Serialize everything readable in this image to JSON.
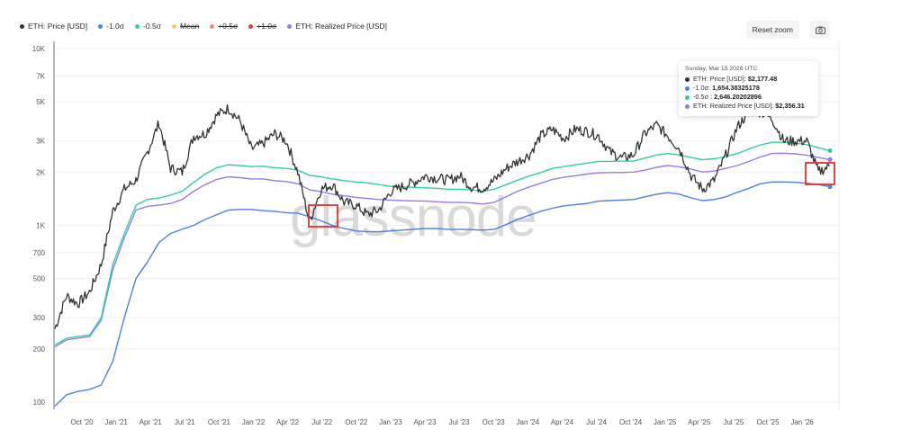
{
  "legend": [
    {
      "label": "ETH: Price [USD]",
      "color": "#333333",
      "hidden": false
    },
    {
      "label": "-1.0σ",
      "color": "#4f7fe0",
      "hidden": false
    },
    {
      "label": "-0.5σ",
      "color": "#2fcfa6",
      "hidden": false
    },
    {
      "label": "Mean",
      "color": "#f2cd4f",
      "hidden": true
    },
    {
      "label": "+0.5σ",
      "color": "#f28a6b",
      "hidden": true
    },
    {
      "label": "+1.0σ",
      "color": "#e8344f",
      "hidden": true
    },
    {
      "label": "ETH: Realized Price [USD]",
      "color": "#9b78ee",
      "hidden": false
    }
  ],
  "toolbar": {
    "reset_zoom_label": "Reset zoom",
    "camera_icon": "camera-icon"
  },
  "tooltip": {
    "date": "Sunday, Mar 15 2026 UTC",
    "rows": [
      {
        "label": "ETH: Price [USD]: ",
        "value": "$2,177.48",
        "color": "#333333"
      },
      {
        "label": "-1.0σ: ",
        "value": "1,654.38325178",
        "color": "#4f7fe0"
      },
      {
        "label": "-0.5σ : ",
        "value": "2,646.20202896",
        "color": "#2fcfa6"
      },
      {
        "label": "ETH: Realized Price [USD]: ",
        "value": "$2,356.31",
        "color": "#9b78ee"
      }
    ]
  },
  "watermark": "glassnode",
  "chart_data": {
    "type": "line",
    "title": "",
    "xlabel": "",
    "ylabel": "",
    "yscale": "log",
    "ylim": [
      90,
      10000
    ],
    "y_ticks": [
      "100",
      "200",
      "300",
      "500",
      "700",
      "1K",
      "2K",
      "3K",
      "5K",
      "7K",
      "10K"
    ],
    "y_tick_values": [
      100,
      200,
      300,
      500,
      700,
      1000,
      2000,
      3000,
      5000,
      7000,
      10000
    ],
    "x_ticks": [
      "Oct '20",
      "Jan '21",
      "Apr '21",
      "Jul '21",
      "Oct '21",
      "Jan '22",
      "Apr '22",
      "Jul '22",
      "Oct '22",
      "Jan '23",
      "Apr '23",
      "Jul '23",
      "Oct '23",
      "Jan '24",
      "Apr '24",
      "Jul '24",
      "Oct '24",
      "Jan '25",
      "Apr '25",
      "Jul '25",
      "Oct '25",
      "Jan '26"
    ],
    "grid": true,
    "legend_position": "top-left",
    "x": [
      "Aug '20",
      "Sep '20",
      "Oct '20",
      "Nov '20",
      "Dec '20",
      "Jan '21",
      "Feb '21",
      "Mar '21",
      "Apr '21",
      "May '21",
      "Jun '21",
      "Jul '21",
      "Aug '21",
      "Sep '21",
      "Oct '21",
      "Nov '21",
      "Dec '21",
      "Jan '22",
      "Feb '22",
      "Mar '22",
      "Apr '22",
      "May '22",
      "Jun '22",
      "Jul '22",
      "Aug '22",
      "Sep '22",
      "Oct '22",
      "Nov '22",
      "Dec '22",
      "Jan '23",
      "Feb '23",
      "Mar '23",
      "Apr '23",
      "May '23",
      "Jun '23",
      "Jul '23",
      "Aug '23",
      "Sep '23",
      "Oct '23",
      "Nov '23",
      "Dec '23",
      "Jan '24",
      "Feb '24",
      "Mar '24",
      "Apr '24",
      "May '24",
      "Jun '24",
      "Jul '24",
      "Aug '24",
      "Sep '24",
      "Oct '24",
      "Nov '24",
      "Dec '24",
      "Jan '25",
      "Feb '25",
      "Mar '25",
      "Apr '25",
      "May '25",
      "Jun '25",
      "Jul '25",
      "Aug '25",
      "Sep '25",
      "Oct '25",
      "Nov '25",
      "Dec '25",
      "Jan '26",
      "Feb '26",
      "Mar '26"
    ],
    "series": [
      {
        "name": "ETH: Price [USD]",
        "color": "#333333",
        "values": [
          260,
          400,
          360,
          420,
          600,
          1200,
          1600,
          1800,
          2600,
          3800,
          2100,
          2000,
          3200,
          3300,
          4200,
          4600,
          3900,
          2700,
          2900,
          3300,
          3000,
          2000,
          1050,
          1600,
          1700,
          1350,
          1300,
          1150,
          1220,
          1550,
          1650,
          1750,
          1900,
          1850,
          1800,
          1900,
          1650,
          1620,
          1800,
          2100,
          2300,
          2500,
          3200,
          3500,
          3100,
          3500,
          3400,
          3200,
          2600,
          2400,
          2500,
          3300,
          3700,
          3200,
          2700,
          1900,
          1600,
          1800,
          2500,
          3600,
          4400,
          4400,
          4000,
          3000,
          3000,
          3000,
          2000,
          2177
        ]
      },
      {
        "name": "-0.5σ",
        "color": "#2fcfa6",
        "values": [
          210,
          230,
          235,
          240,
          300,
          600,
          900,
          1300,
          1400,
          1430,
          1480,
          1560,
          1750,
          1950,
          2120,
          2200,
          2180,
          2150,
          2160,
          2120,
          2100,
          2050,
          1920,
          1880,
          1830,
          1790,
          1760,
          1740,
          1700,
          1660,
          1650,
          1640,
          1630,
          1620,
          1600,
          1600,
          1590,
          1560,
          1600,
          1700,
          1800,
          1900,
          1990,
          2100,
          2150,
          2200,
          2250,
          2300,
          2300,
          2310,
          2310,
          2400,
          2500,
          2550,
          2500,
          2420,
          2350,
          2380,
          2450,
          2550,
          2700,
          2850,
          2950,
          2950,
          2920,
          2860,
          2750,
          2646
        ]
      },
      {
        "name": "ETH: Realized Price [USD]",
        "color": "#9b78ee",
        "values": [
          205,
          225,
          230,
          235,
          290,
          560,
          850,
          1220,
          1280,
          1300,
          1330,
          1400,
          1560,
          1700,
          1820,
          1880,
          1860,
          1830,
          1830,
          1790,
          1770,
          1720,
          1590,
          1550,
          1500,
          1470,
          1440,
          1420,
          1400,
          1390,
          1380,
          1375,
          1370,
          1360,
          1350,
          1350,
          1340,
          1320,
          1350,
          1450,
          1560,
          1650,
          1730,
          1820,
          1870,
          1910,
          1950,
          1980,
          1990,
          1990,
          2000,
          2050,
          2130,
          2180,
          2140,
          2080,
          2000,
          2030,
          2100,
          2180,
          2300,
          2440,
          2550,
          2560,
          2540,
          2490,
          2420,
          2356
        ]
      },
      {
        "name": "-1.0σ",
        "color": "#4f7fe0",
        "values": [
          95,
          110,
          115,
          118,
          125,
          170,
          300,
          500,
          620,
          800,
          900,
          950,
          1000,
          1080,
          1150,
          1220,
          1230,
          1230,
          1210,
          1200,
          1180,
          1170,
          1120,
          1060,
          1000,
          960,
          930,
          920,
          920,
          930,
          940,
          950,
          960,
          960,
          950,
          950,
          945,
          940,
          950,
          1010,
          1080,
          1140,
          1200,
          1250,
          1290,
          1310,
          1330,
          1370,
          1380,
          1390,
          1400,
          1450,
          1500,
          1530,
          1500,
          1430,
          1380,
          1400,
          1450,
          1540,
          1620,
          1720,
          1760,
          1760,
          1750,
          1730,
          1700,
          1654
        ]
      }
    ],
    "annotations": [
      {
        "type": "highlight-box",
        "color": "#e0312b",
        "x_range": [
          "Jun '22",
          "Jul '22"
        ],
        "y_range": [
          900,
          1300
        ]
      },
      {
        "type": "highlight-box",
        "color": "#e0312b",
        "x_range": [
          "Feb '26",
          "Mar '26"
        ],
        "y_range": [
          1650,
          2250
        ]
      }
    ],
    "hover_point": {
      "x": "Mar 15 2026",
      "values": {
        "ETH: Price [USD]": 2177.48,
        "-1.0σ": 1654.38325178,
        "-0.5σ": 2646.20202896,
        "ETH: Realized Price [USD]": 2356.31
      }
    }
  }
}
